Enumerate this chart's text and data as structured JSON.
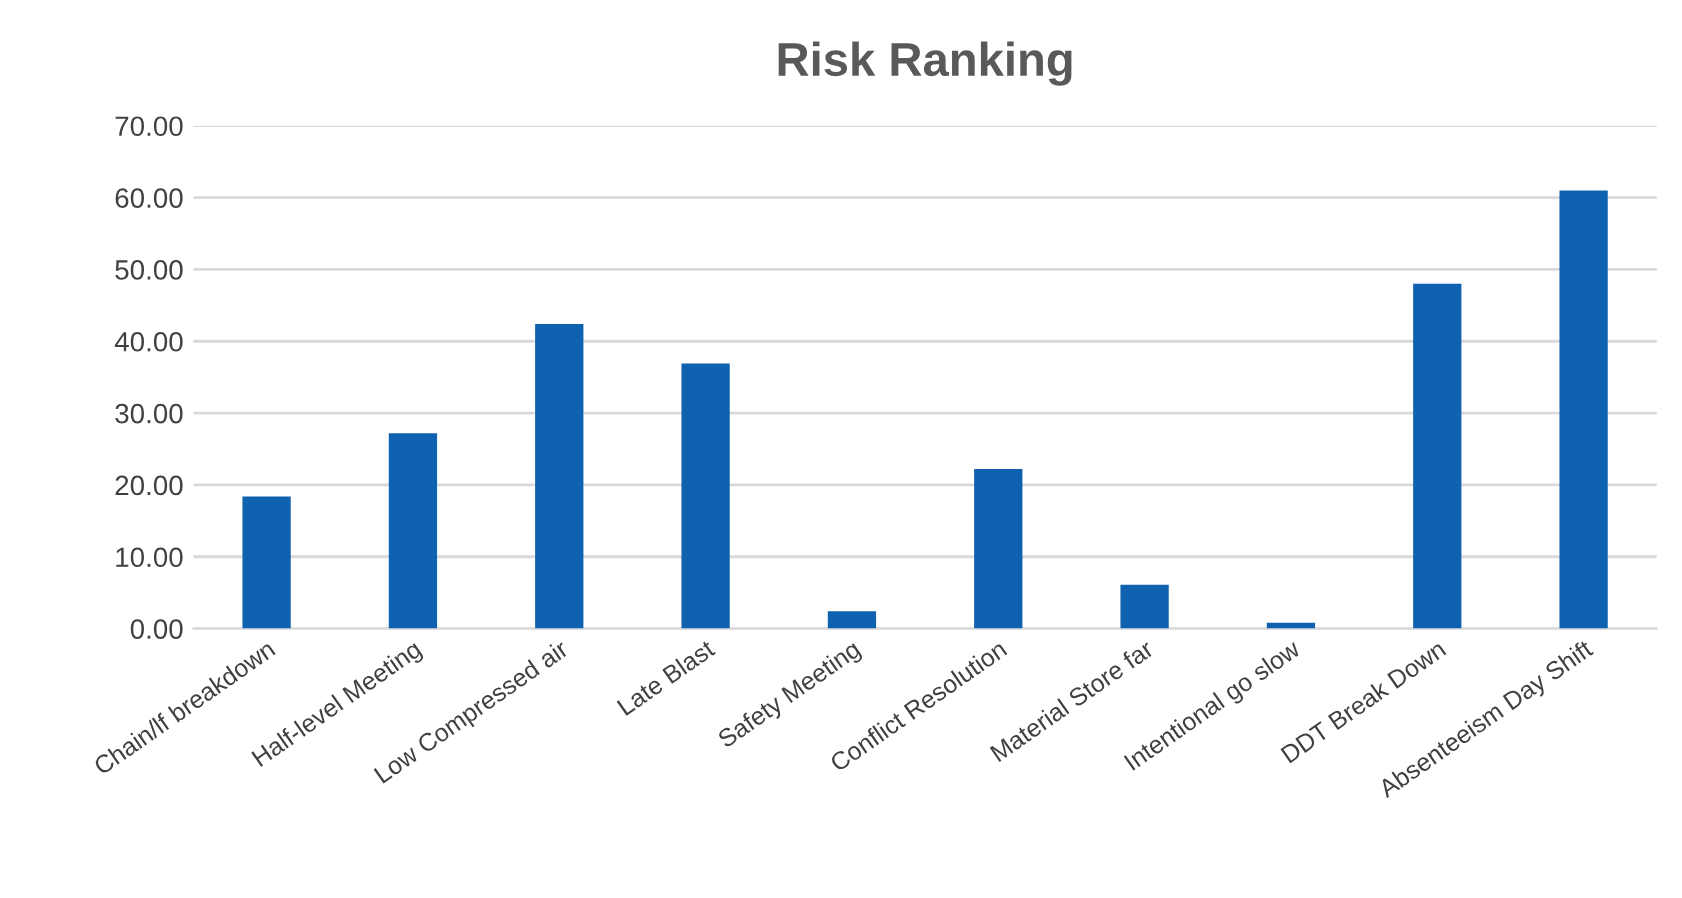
{
  "chart_data": {
    "type": "bar",
    "title": "Risk Ranking",
    "categories": [
      "Chain/lf breakdown",
      "Half-level Meeting",
      "Low Compressed air",
      "Late Blast",
      "Safety Meeting",
      "Conflict Resolution",
      "Material Store far",
      "Intentional go slow",
      "DDT Break Down",
      "Absenteeism Day Shift"
    ],
    "values": [
      18.4,
      27.2,
      42.4,
      36.9,
      2.4,
      22.2,
      6.1,
      0.8,
      48.0,
      61.0
    ],
    "color": "#0f62b0",
    "ylim": [
      0,
      70
    ],
    "yticks": [
      {
        "value": 0,
        "label": "0.00"
      },
      {
        "value": 10,
        "label": "10.00"
      },
      {
        "value": 20,
        "label": "20.00"
      },
      {
        "value": 30,
        "label": "30.00"
      },
      {
        "value": 40,
        "label": "40.00"
      },
      {
        "value": 50,
        "label": "50.00"
      },
      {
        "value": 60,
        "label": "60.00"
      },
      {
        "value": 70,
        "label": "70.00"
      }
    ],
    "grid": "y"
  }
}
